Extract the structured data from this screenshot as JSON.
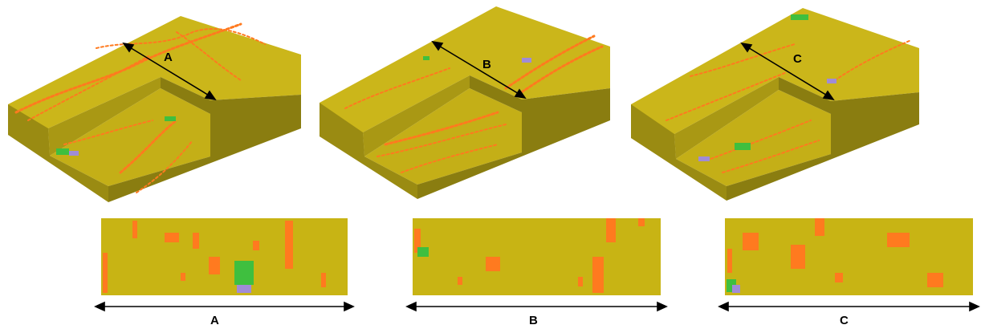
{
  "panels": [
    {
      "label": "A",
      "bottom_label": "A"
    },
    {
      "label": "B",
      "bottom_label": "B"
    },
    {
      "label": "C",
      "bottom_label": "C"
    }
  ],
  "colors": {
    "matrix": "#c8b414",
    "matrix_top": "#cbb61a",
    "side_dark": "#8a7d10",
    "side_mid": "#a99814",
    "channel": "#ff7a1f",
    "green": "#3fbf3f",
    "purple": "#a08cd6",
    "arrow": "#000000"
  }
}
